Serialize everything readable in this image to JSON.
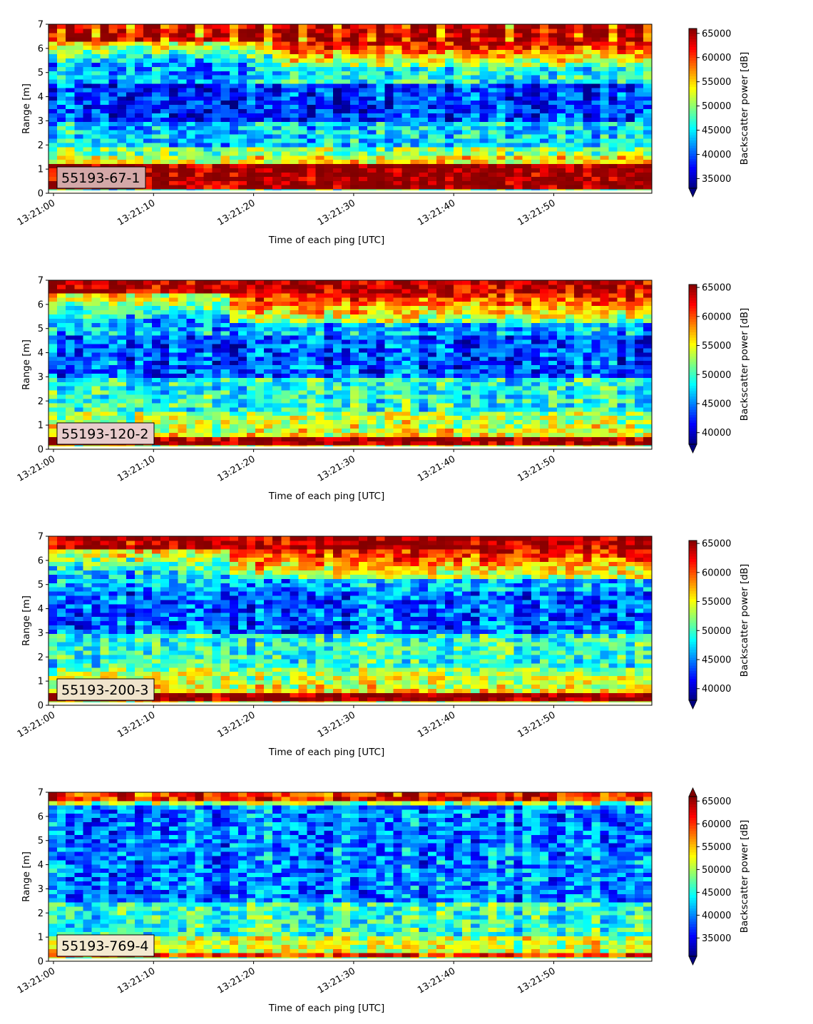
{
  "chart_data": [
    {
      "type": "heatmap",
      "badge": "55193-67-1",
      "badge_color": "#d4a8a8",
      "xlabel": "Time of each ping [UTC]",
      "ylabel": "Range [m]",
      "x_ticks": [
        "13:21:00",
        "13:21:10",
        "13:21:20",
        "13:21:30",
        "13:21:40",
        "13:21:50"
      ],
      "x_range": [
        "13:21:00",
        "13:21:59"
      ],
      "y_ticks": [
        "0",
        "1",
        "2",
        "3",
        "4",
        "5",
        "6",
        "7"
      ],
      "ylim": [
        0,
        7
      ],
      "colorbar_label": "Backscatter power [dB]",
      "colorbar_ticks": [
        "35000",
        "40000",
        "45000",
        "50000",
        "55000",
        "60000",
        "65000"
      ],
      "colorbar_range": [
        33000,
        66000
      ],
      "colorbar_extend": "min",
      "colormap": "jet",
      "features": {
        "surface_band": [
          0.25,
          1.2
        ],
        "blue_layer": [
          3.0,
          4.5
        ],
        "top_band": [
          6.3,
          7.0
        ]
      }
    },
    {
      "type": "heatmap",
      "badge": "55193-120-2",
      "badge_color": "#e8cccc",
      "xlabel": "Time of each ping [UTC]",
      "ylabel": "Range [m]",
      "x_ticks": [
        "13:21:00",
        "13:21:10",
        "13:21:20",
        "13:21:30",
        "13:21:40",
        "13:21:50"
      ],
      "x_range": [
        "13:21:00",
        "13:21:59"
      ],
      "y_ticks": [
        "0",
        "1",
        "2",
        "3",
        "4",
        "5",
        "6",
        "7"
      ],
      "ylim": [
        0,
        7
      ],
      "colorbar_label": "Backscatter power [dB]",
      "colorbar_ticks": [
        "40000",
        "45000",
        "50000",
        "55000",
        "60000",
        "65000"
      ],
      "colorbar_range": [
        38000,
        65500
      ],
      "colorbar_extend": "min",
      "colormap": "jet",
      "features": {
        "surface_band": [
          0.15,
          0.65
        ],
        "blue_layer": [
          3.0,
          5.0
        ],
        "top_band": [
          5.0,
          7.0
        ]
      }
    },
    {
      "type": "heatmap",
      "badge": "55193-200-3",
      "badge_color": "#f0e4cc",
      "xlabel": "Time of each ping [UTC]",
      "ylabel": "Range [m]",
      "x_ticks": [
        "13:21:00",
        "13:21:10",
        "13:21:20",
        "13:21:30",
        "13:21:40",
        "13:21:50"
      ],
      "x_range": [
        "13:21:00",
        "13:21:59"
      ],
      "y_ticks": [
        "0",
        "1",
        "2",
        "3",
        "4",
        "5",
        "6",
        "7"
      ],
      "ylim": [
        0,
        7
      ],
      "colorbar_label": "Backscatter power [dB]",
      "colorbar_ticks": [
        "40000",
        "45000",
        "50000",
        "55000",
        "60000",
        "65000"
      ],
      "colorbar_range": [
        38000,
        65500
      ],
      "colorbar_extend": "min",
      "colormap": "jet",
      "features": {
        "surface_band": [
          0.1,
          0.6
        ],
        "blue_layer": [
          3.0,
          5.0
        ],
        "top_band": [
          5.2,
          7.0
        ]
      }
    },
    {
      "type": "heatmap",
      "badge": "55193-769-4",
      "badge_color": "#f4ead0",
      "xlabel": "Time of each ping [UTC]",
      "ylabel": "Range [m]",
      "x_ticks": [
        "13:21:00",
        "13:21:10",
        "13:21:20",
        "13:21:30",
        "13:21:40",
        "13:21:50"
      ],
      "x_range": [
        "13:21:00",
        "13:21:59"
      ],
      "y_ticks": [
        "0",
        "1",
        "2",
        "3",
        "4",
        "5",
        "6",
        "7"
      ],
      "ylim": [
        0,
        7
      ],
      "colorbar_label": "Backscatter power [dB]",
      "colorbar_ticks": [
        "35000",
        "40000",
        "45000",
        "50000",
        "55000",
        "60000",
        "65000"
      ],
      "colorbar_range": [
        31000,
        66000
      ],
      "colorbar_extend": "both",
      "colormap": "jet",
      "features": {
        "surface_band": [
          0.1,
          0.35
        ],
        "blue_layer": [
          3.5,
          6.5
        ],
        "top_band": [
          6.6,
          7.0
        ]
      }
    }
  ]
}
